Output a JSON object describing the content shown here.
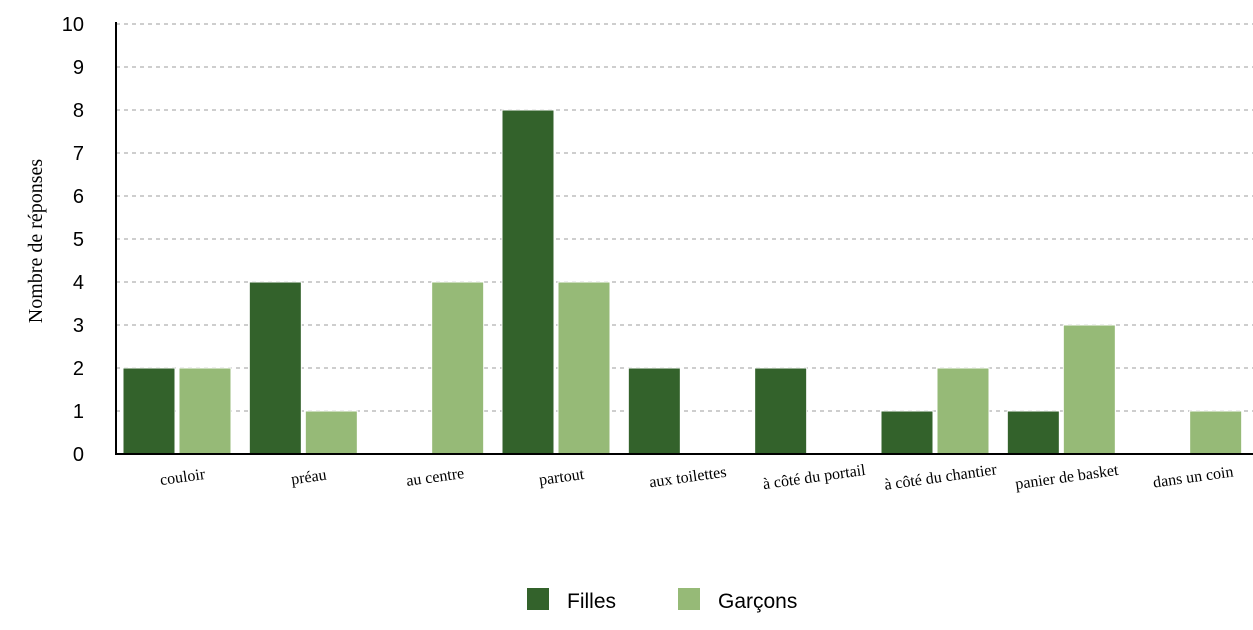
{
  "chart_data": {
    "type": "bar",
    "title": "",
    "xlabel": "",
    "ylabel": "Nombre de réponses",
    "ylim": [
      0,
      10
    ],
    "yticks": [
      0,
      1,
      2,
      3,
      4,
      5,
      6,
      7,
      8,
      9,
      10
    ],
    "grid": true,
    "legend_position": "bottom",
    "categories": [
      "couloir",
      "préau",
      "au centre",
      "partout",
      "aux toilettes",
      "à côté du portail",
      "à côté du chantier",
      "panier de basket",
      "dans un coin"
    ],
    "series": [
      {
        "name": "Filles",
        "color": "#33622b",
        "values": [
          2,
          4,
          0,
          8,
          2,
          2,
          1,
          1,
          0
        ]
      },
      {
        "name": "Garçons",
        "color": "#96ba77",
        "values": [
          2,
          1,
          4,
          4,
          0,
          0,
          2,
          3,
          1
        ]
      }
    ]
  }
}
